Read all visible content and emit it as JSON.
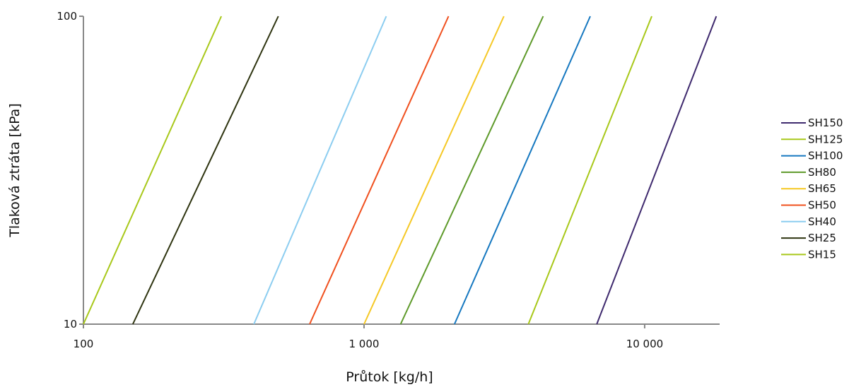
{
  "chart_data": {
    "type": "line",
    "xlabel": "Průtok [kg/h]",
    "ylabel": "Tlaková ztráta [kPa]",
    "x_scale": "log",
    "y_scale": "log",
    "xlim": [
      100,
      18500
    ],
    "ylim": [
      10,
      100
    ],
    "x_ticks": [
      {
        "value": 100,
        "label": "100"
      },
      {
        "value": 1000,
        "label": "1 000"
      },
      {
        "value": 10000,
        "label": "10 000"
      }
    ],
    "y_ticks": [
      {
        "value": 10,
        "label": "10"
      },
      {
        "value": 100,
        "label": "100"
      }
    ],
    "grid": false,
    "legend_position": "right",
    "series": [
      {
        "name": "SH150",
        "color": "#3f2a6e",
        "x": [
          6750,
          18000
        ],
        "y": [
          10,
          100
        ]
      },
      {
        "name": "SH125",
        "color": "#a8c81a",
        "x": [
          3850,
          10600
        ],
        "y": [
          10,
          100
        ]
      },
      {
        "name": "SH100",
        "color": "#1678c0",
        "x": [
          2100,
          6400
        ],
        "y": [
          10,
          100
        ]
      },
      {
        "name": "SH80",
        "color": "#5e9a2a",
        "x": [
          1350,
          4350
        ],
        "y": [
          10,
          100
        ]
      },
      {
        "name": "SH65",
        "color": "#f5c825",
        "x": [
          1000,
          3150
        ],
        "y": [
          10,
          100
        ]
      },
      {
        "name": "SH50",
        "color": "#f0501e",
        "x": [
          640,
          2000
        ],
        "y": [
          10,
          100
        ]
      },
      {
        "name": "SH40",
        "color": "#8ccdf0",
        "x": [
          405,
          1200
        ],
        "y": [
          10,
          100
        ]
      },
      {
        "name": "SH25",
        "color": "#2e3410",
        "x": [
          150,
          495
        ],
        "y": [
          10,
          100
        ]
      },
      {
        "name": "SH15",
        "color": "#a8c81a",
        "x": [
          100,
          310
        ],
        "y": [
          10,
          100
        ]
      }
    ]
  }
}
